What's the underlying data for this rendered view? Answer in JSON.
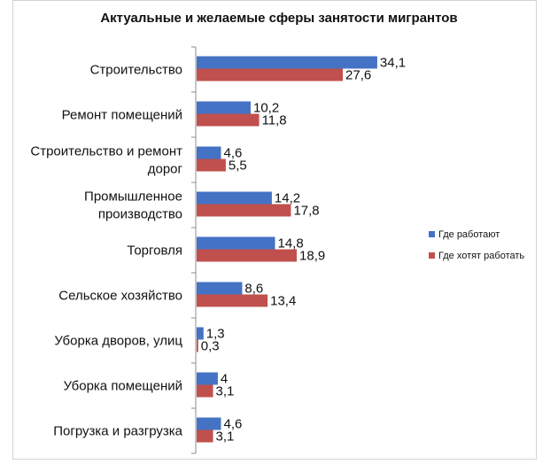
{
  "chart_data": {
    "type": "bar",
    "orientation": "horizontal",
    "title": "Актуальные и желаемые сферы занятости мигрантов",
    "categories": [
      [
        "Строительство"
      ],
      [
        "Ремонт помещений"
      ],
      [
        "Строительство и ремонт",
        "дорог"
      ],
      [
        "Промышленное",
        "производство"
      ],
      [
        "Торговля"
      ],
      [
        "Сельское хозяйство"
      ],
      [
        "Уборка дворов, улиц"
      ],
      [
        "Уборка помещений"
      ],
      [
        "Погрузка и разгрузка"
      ]
    ],
    "series": [
      {
        "name": "Где работают",
        "color": "#4472c4",
        "values": [
          34.1,
          10.2,
          4.6,
          14.2,
          14.8,
          8.6,
          1.3,
          4,
          4.6
        ],
        "labels": [
          "34,1",
          "10,2",
          "4,6",
          "14,2",
          "14,8",
          "8,6",
          "1,3",
          "4",
          "4,6"
        ]
      },
      {
        "name": "Где хотят работать",
        "color": "#c0504d",
        "values": [
          27.6,
          11.8,
          5.5,
          17.8,
          18.9,
          13.4,
          0.3,
          3.1,
          3.1
        ],
        "labels": [
          "27,6",
          "11,8",
          "5,5",
          "17,8",
          "18,9",
          "13,4",
          "0,3",
          "3,1",
          "3,1"
        ]
      }
    ],
    "xlim": [
      0,
      40
    ],
    "legend": "right",
    "grid": false
  }
}
